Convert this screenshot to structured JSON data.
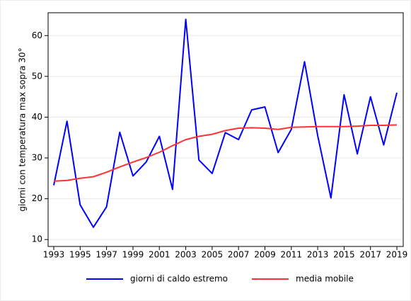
{
  "chart_data": {
    "type": "line",
    "y_label": "giorni con temperatura max sopra 30°",
    "x": [
      1993,
      1994,
      1995,
      1996,
      1997,
      1998,
      1999,
      2000,
      2001,
      2002,
      2003,
      2004,
      2005,
      2006,
      2007,
      2008,
      2009,
      2010,
      2011,
      2012,
      2013,
      2014,
      2015,
      2016,
      2017,
      2018,
      2019
    ],
    "series": [
      {
        "name": "giorni di caldo estremo",
        "color": "#0000ff",
        "values": [
          23.3,
          39,
          18.5,
          13,
          18,
          36.3,
          25.6,
          29,
          35.3,
          22.3,
          64,
          29.5,
          26.2,
          36.2,
          34.5,
          41.8,
          42.5,
          31.3,
          37,
          53.6,
          35.5,
          20.2,
          45.5,
          31,
          45,
          33.2,
          46
        ]
      },
      {
        "name": "media mobile",
        "color": "#ff3333",
        "values": [
          24.3,
          24.5,
          25,
          25.4,
          26.5,
          27.8,
          29,
          30.1,
          31.4,
          33,
          34.5,
          35.3,
          35.8,
          36.7,
          37.3,
          37.4,
          37.3,
          37,
          37.5,
          37.6,
          37.7,
          37.7,
          37.7,
          37.8,
          38,
          38,
          38.1
        ]
      }
    ],
    "xlim": [
      1992.57,
      2019.48
    ],
    "xticks": [
      1993,
      1995,
      1997,
      1999,
      2001,
      2003,
      2005,
      2007,
      2009,
      2011,
      2013,
      2015,
      2017,
      2019
    ],
    "ylim": [
      8.3,
      65.6
    ],
    "yticks": [
      10,
      20,
      30,
      40,
      50,
      60
    ],
    "grid": true
  }
}
